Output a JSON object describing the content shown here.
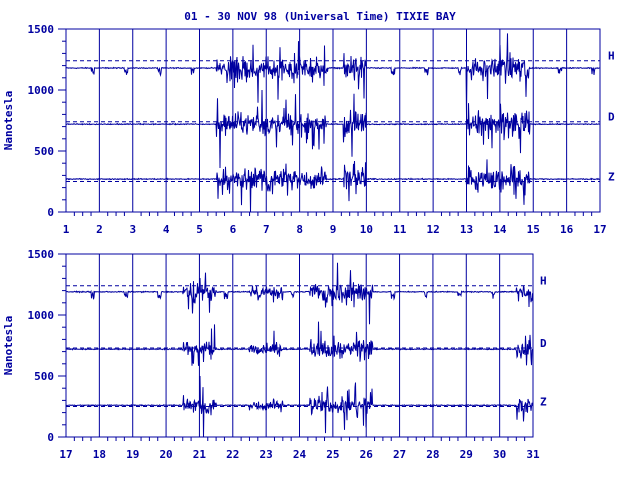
{
  "chart_data": {
    "type": "line",
    "title": "01 - 30 NOV 98 (Universal Time) TIXIE BAY",
    "ylabel": "Nanotesla",
    "xlabel": "",
    "colors": {
      "ink": "#0000a0",
      "background": "#ffffff"
    },
    "grid": "vertical lines at each day",
    "reference_lines": "dashed baseline per component",
    "panels": [
      {
        "name": "top",
        "xlim": [
          1,
          17
        ],
        "ylim": [
          0,
          1500
        ],
        "x_ticks": [
          1,
          2,
          3,
          4,
          5,
          6,
          7,
          8,
          9,
          10,
          11,
          12,
          13,
          14,
          15,
          16,
          17
        ],
        "y_ticks": [
          0,
          500,
          1000,
          1500
        ],
        "series": [
          {
            "name": "H",
            "baseline": 1240,
            "level": 1180
          },
          {
            "name": "D",
            "baseline": 740,
            "level": 720
          },
          {
            "name": "Z",
            "baseline": 250,
            "level": 270
          }
        ],
        "disturbed_days": [
          {
            "from": 5.5,
            "to": 8.8,
            "amplitude": 380
          },
          {
            "from": 9.3,
            "to": 10.0,
            "amplitude": 420
          },
          {
            "from": 13.0,
            "to": 14.9,
            "amplitude": 420
          }
        ]
      },
      {
        "name": "bottom",
        "xlim": [
          17,
          31
        ],
        "ylim": [
          0,
          1500
        ],
        "x_ticks": [
          17,
          18,
          19,
          20,
          21,
          22,
          23,
          24,
          25,
          26,
          27,
          28,
          29,
          30,
          31
        ],
        "y_ticks": [
          0,
          500,
          1000,
          1500
        ],
        "series": [
          {
            "name": "H",
            "baseline": 1240,
            "level": 1190
          },
          {
            "name": "D",
            "baseline": 730,
            "level": 720
          },
          {
            "name": "Z",
            "baseline": 250,
            "level": 260
          }
        ],
        "disturbed_days": [
          {
            "from": 20.5,
            "to": 21.5,
            "amplitude": 250
          },
          {
            "from": 22.5,
            "to": 23.5,
            "amplitude": 200
          },
          {
            "from": 24.3,
            "to": 26.2,
            "amplitude": 330
          },
          {
            "from": 30.5,
            "to": 31.0,
            "amplitude": 280
          }
        ]
      }
    ]
  }
}
